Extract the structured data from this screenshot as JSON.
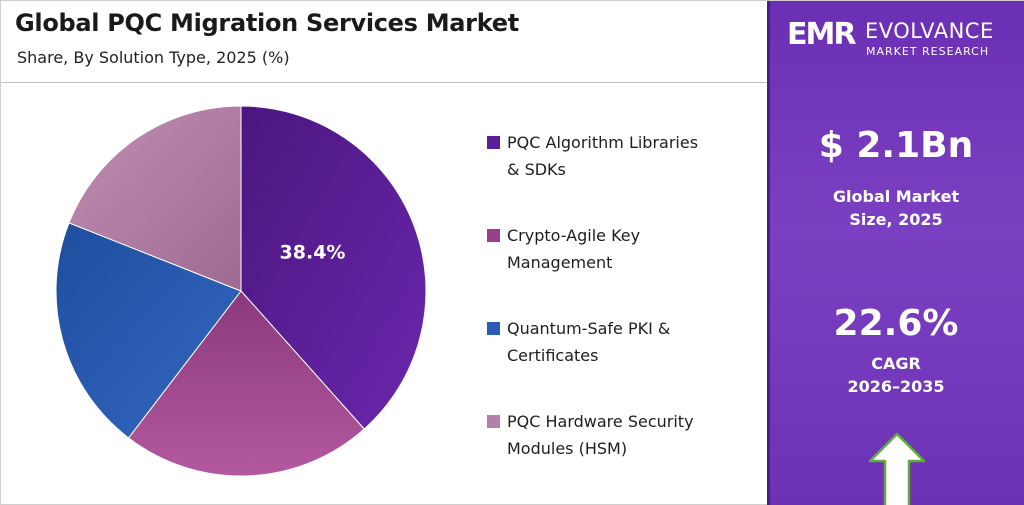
{
  "header": {
    "title": "Global PQC Migration Services Market",
    "subtitle": "Share, By Solution Type, 2025 (%)"
  },
  "brand": {
    "mark": "EMR",
    "name": "EVOLVANCE",
    "tagline": "MARKET RESEARCH"
  },
  "stats": {
    "market_size_value": "$ 2.1Bn",
    "market_size_label_1": "Global Market",
    "market_size_label_2": "Size, 2025",
    "cagr_value": "22.6%",
    "cagr_label_1": "CAGR",
    "cagr_label_2": "2026–2035"
  },
  "colors": {
    "accent_panel": "#7338bb",
    "arrow_fill": "#ffffff",
    "arrow_stroke": "#5fae3a"
  },
  "legend": [
    {
      "line1": "PQC Algorithm Libraries",
      "line2": "& SDKs",
      "color": "#5c1f9a"
    },
    {
      "line1": "Crypto-Agile Key",
      "line2": "Management",
      "color": "#9b3f8c"
    },
    {
      "line1": "Quantum-Safe PKI &",
      "line2": "Certificates",
      "color": "#2a5bb5"
    },
    {
      "line1": "PQC Hardware Security",
      "line2": "Modules (HSM)",
      "color": "#b57fa8"
    }
  ],
  "chart_data": {
    "type": "pie",
    "title": "Global PQC Migration Services Market",
    "subtitle": "Share, By Solution Type, 2025 (%)",
    "categories": [
      "PQC Algorithm Libraries & SDKs",
      "Crypto-Agile Key Management",
      "Quantum-Safe PKI & Certificates",
      "PQC Hardware Security Modules (HSM)"
    ],
    "values": [
      38.4,
      22.0,
      20.6,
      19.0
    ],
    "colors": [
      "#5c1f9a",
      "#a14a92",
      "#2a5bb5",
      "#b47fa8"
    ],
    "labeled_values": [
      "38.4%",
      "",
      "",
      ""
    ],
    "legend_position": "right"
  }
}
